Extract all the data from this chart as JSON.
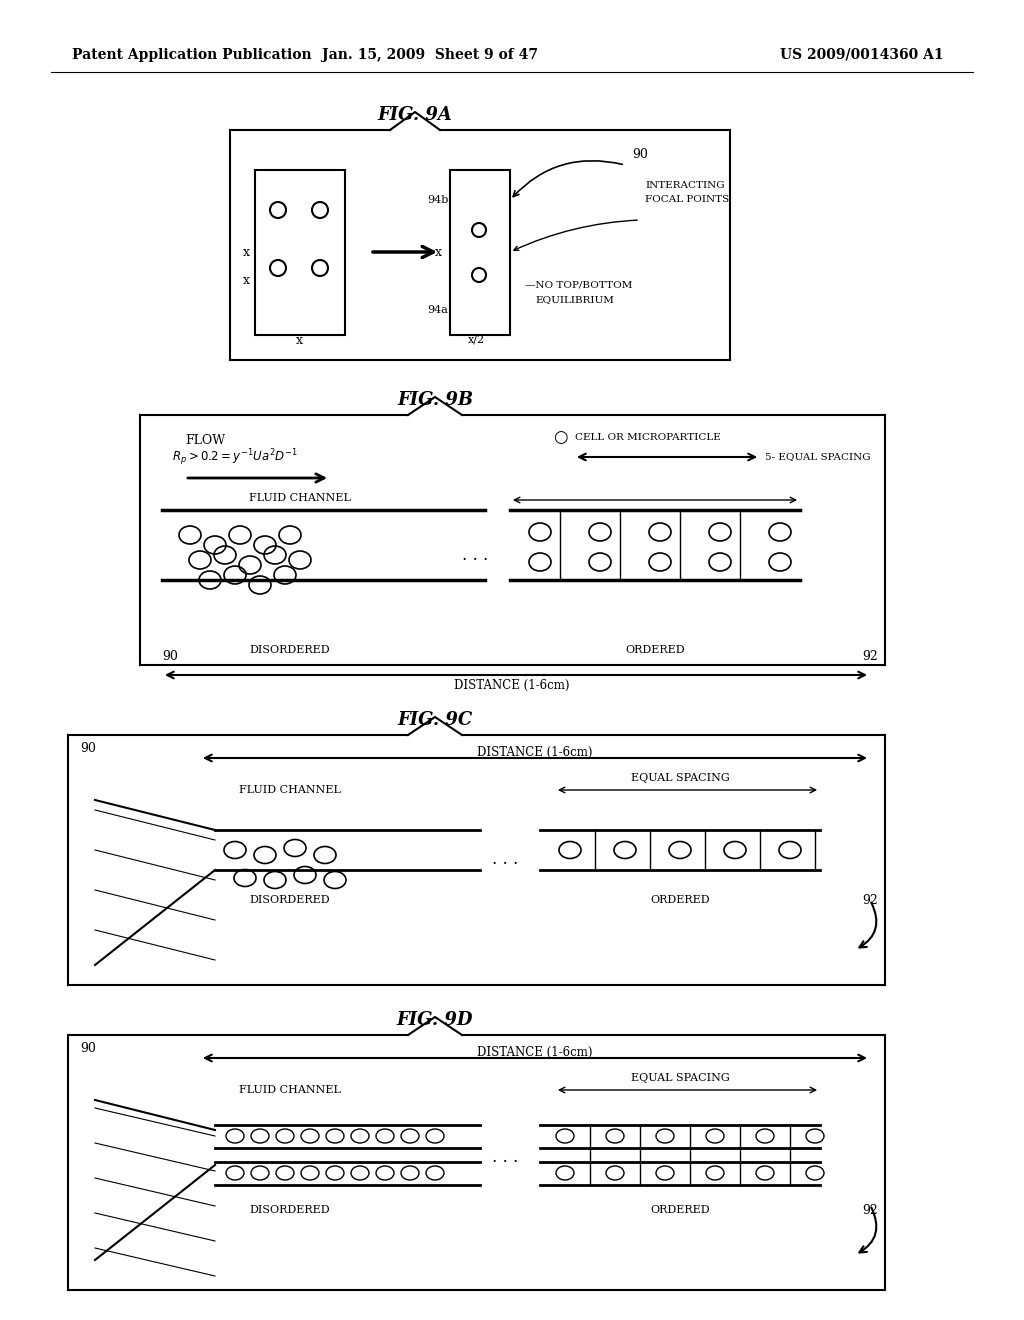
{
  "bg_color": "#ffffff",
  "header_left": "Patent Application Publication",
  "header_mid": "Jan. 15, 2009  Sheet 9 of 47",
  "header_right": "US 2009/0014360 A1",
  "fig9a_title": "FIG. 9A",
  "fig9b_title": "FIG. 9B",
  "fig9c_title": "FIG. 9C",
  "fig9d_title": "FIG. 9D"
}
